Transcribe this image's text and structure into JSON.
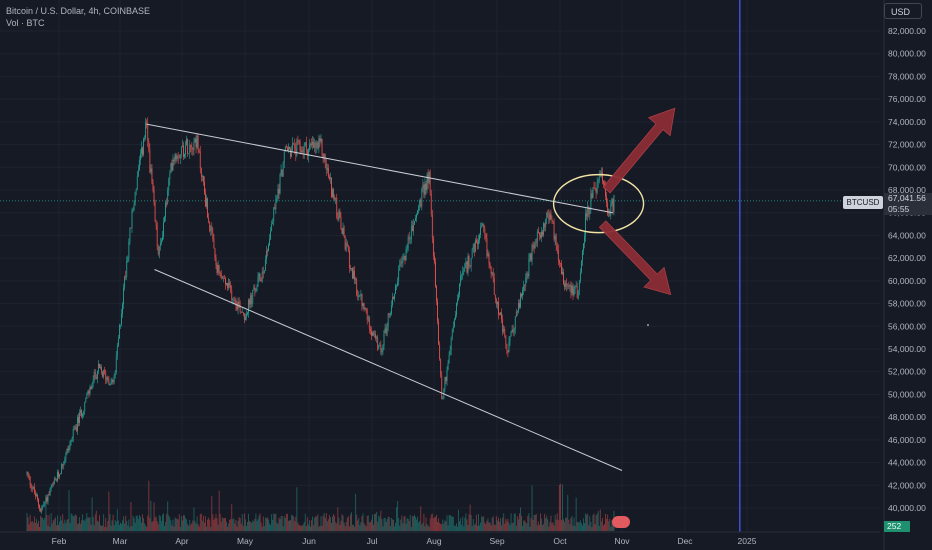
{
  "legend": {
    "symbol_line": "Bitcoin / U.S. Dollar, 4h, COINBASE",
    "volume_line": "Vol · BTC"
  },
  "toolbar": {
    "currency_label": "USD"
  },
  "price_scale": {
    "ticks": [
      "82,000.00",
      "80,000.00",
      "78,000.00",
      "76,000.00",
      "74,000.00",
      "72,000.00",
      "70,000.00",
      "68,000.00",
      "66,000.00",
      "64,000.00",
      "62,000.00",
      "60,000.00",
      "58,000.00",
      "56,000.00",
      "54,000.00",
      "52,000.00",
      "50,000.00",
      "48,000.00",
      "46,000.00",
      "44,000.00",
      "42,000.00",
      "40,000.00"
    ],
    "symbol_badge": "BTCUSD",
    "last_price": "67,041.56",
    "countdown": "05:55",
    "volume_value": "252"
  },
  "time_scale": {
    "labels": [
      "Feb",
      "Mar",
      "Apr",
      "May",
      "Jun",
      "Jul",
      "Aug",
      "Sep",
      "Oct",
      "Nov",
      "Dec",
      "2025"
    ]
  },
  "colors": {
    "background": "#161a25",
    "up": "#26a69a",
    "down": "#ef5350",
    "trendline": "#c8cbd3",
    "ellipse": "#f2e3a4",
    "arrow": "#8b2c35",
    "vertical_marker": "#3f51d8"
  },
  "chart_data": {
    "type": "candlestick",
    "title": "Bitcoin / U.S. Dollar, 4h, COINBASE",
    "y_range": [
      39000,
      84000
    ],
    "last_price": 67041.56,
    "anchor_points": [
      {
        "x": "Jan 16",
        "price": 43000
      },
      {
        "x": "Jan 23",
        "price": 39800
      },
      {
        "x": "Feb 1",
        "price": 43000
      },
      {
        "x": "Feb 10",
        "price": 47500
      },
      {
        "x": "Feb 20",
        "price": 52200
      },
      {
        "x": "Feb 28",
        "price": 51000
      },
      {
        "x": "Mar 5",
        "price": 63000
      },
      {
        "x": "Mar 9",
        "price": 68500
      },
      {
        "x": "Mar 14",
        "price": 73600
      },
      {
        "x": "Mar 20",
        "price": 62000
      },
      {
        "x": "Mar 27",
        "price": 71000
      },
      {
        "x": "Apr 8",
        "price": 72500
      },
      {
        "x": "Apr 18",
        "price": 61000
      },
      {
        "x": "May 1",
        "price": 57000
      },
      {
        "x": "May 10",
        "price": 61000
      },
      {
        "x": "May 21",
        "price": 71500
      },
      {
        "x": "Jun 7",
        "price": 71800
      },
      {
        "x": "Jun 24",
        "price": 59500
      },
      {
        "x": "Jul 5",
        "price": 53700
      },
      {
        "x": "Jul 14",
        "price": 60500
      },
      {
        "x": "Jul 29",
        "price": 69500
      },
      {
        "x": "Aug 5",
        "price": 49500
      },
      {
        "x": "Aug 14",
        "price": 60000
      },
      {
        "x": "Aug 25",
        "price": 64500
      },
      {
        "x": "Sep 6",
        "price": 53700
      },
      {
        "x": "Sep 19",
        "price": 63000
      },
      {
        "x": "Sep 27",
        "price": 66000
      },
      {
        "x": "Oct 3",
        "price": 60000
      },
      {
        "x": "Oct 10",
        "price": 59000
      },
      {
        "x": "Oct 14",
        "price": 66000
      },
      {
        "x": "Oct 21",
        "price": 69300
      },
      {
        "x": "Oct 25",
        "price": 66000
      },
      {
        "x": "Oct 28",
        "price": 67041
      }
    ],
    "trendlines": [
      {
        "from": {
          "x": "Mar 14",
          "price": 73800
        },
        "to": {
          "x": "Oct 27",
          "price": 66000
        }
      },
      {
        "from": {
          "x": "Mar 18",
          "price": 61000
        },
        "to": {
          "x": "Nov 1",
          "price": 43300
        }
      }
    ],
    "highlight_ellipse": {
      "center": {
        "x": "Oct 20",
        "price": 66800
      }
    },
    "arrows": [
      {
        "direction": "up",
        "from": {
          "x": "Oct 24",
          "price": 68000
        },
        "to": {
          "x": "Nov 27",
          "price": 75200
        }
      },
      {
        "direction": "down",
        "from": {
          "x": "Oct 22",
          "price": 65000
        },
        "to": {
          "x": "Nov 25",
          "price": 58800
        }
      }
    ],
    "vertical_marker": {
      "x": "Dec 28"
    },
    "grid": true
  }
}
